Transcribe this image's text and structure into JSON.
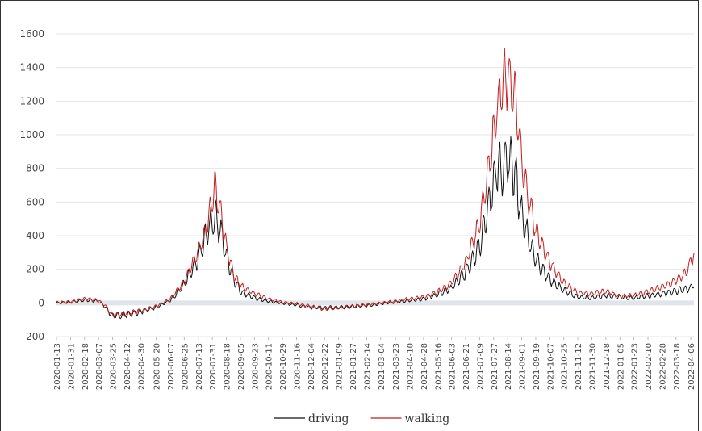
{
  "chart_data": {
    "type": "line",
    "title": "",
    "xlabel": "",
    "ylabel": "",
    "ylim": [
      -200,
      1600
    ],
    "yticks": [
      -200,
      0,
      200,
      400,
      600,
      800,
      1000,
      1200,
      1400,
      1600
    ],
    "x_start": "2020-01-13",
    "x_end": "2022-04-10",
    "xticks": [
      "2020-01-13",
      "2020-01-31",
      "2020-02-18",
      "2020-03-07",
      "2020-03-25",
      "2020-04-12",
      "2020-04-30",
      "2020-05-20",
      "2020-06-07",
      "2020-06-25",
      "2020-07-13",
      "2020-07-31",
      "2020-08-18",
      "2020-09-05",
      "2020-09-23",
      "2020-10-11",
      "2020-10-29",
      "2020-11-16",
      "2020-12-04",
      "2020-12-22",
      "2021-01-09",
      "2021-01-27",
      "2021-02-14",
      "2021-03-04",
      "2021-03-23",
      "2021-04-10",
      "2021-04-28",
      "2021-05-16",
      "2021-06-03",
      "2021-06-21",
      "2021-07-09",
      "2021-07-27",
      "2021-08-14",
      "2021-09-01",
      "2021-09-19",
      "2021-10-07",
      "2021-10-25",
      "2021-11-12",
      "2021-11-30",
      "2021-12-18",
      "2022-01-05",
      "2022-01-23",
      "2022-02-10",
      "2022-02-28",
      "2022-03-18",
      "2022-04-06"
    ],
    "grid": true,
    "legend_position": "bottom",
    "series": [
      {
        "name": "driving",
        "color": "#111111",
        "points": [
          [
            "2020-01-13",
            0
          ],
          [
            "2020-02-01",
            5
          ],
          [
            "2020-02-20",
            18
          ],
          [
            "2020-03-07",
            10
          ],
          [
            "2020-03-15",
            -20
          ],
          [
            "2020-03-25",
            -78
          ],
          [
            "2020-04-12",
            -68
          ],
          [
            "2020-04-30",
            -52
          ],
          [
            "2020-05-20",
            -25
          ],
          [
            "2020-06-07",
            15
          ],
          [
            "2020-06-25",
            110
          ],
          [
            "2020-07-13",
            260
          ],
          [
            "2020-07-25",
            430
          ],
          [
            "2020-08-03",
            520
          ],
          [
            "2020-08-10",
            440
          ],
          [
            "2020-08-18",
            280
          ],
          [
            "2020-08-28",
            140
          ],
          [
            "2020-09-05",
            70
          ],
          [
            "2020-09-23",
            30
          ],
          [
            "2020-10-11",
            10
          ],
          [
            "2020-10-29",
            -2
          ],
          [
            "2020-11-16",
            -12
          ],
          [
            "2020-12-04",
            -25
          ],
          [
            "2020-12-22",
            -30
          ],
          [
            "2021-01-09",
            -25
          ],
          [
            "2021-01-27",
            -22
          ],
          [
            "2021-02-14",
            -15
          ],
          [
            "2021-03-04",
            -5
          ],
          [
            "2021-03-23",
            5
          ],
          [
            "2021-04-10",
            15
          ],
          [
            "2021-04-28",
            25
          ],
          [
            "2021-05-16",
            50
          ],
          [
            "2021-06-03",
            90
          ],
          [
            "2021-06-21",
            180
          ],
          [
            "2021-07-09",
            350
          ],
          [
            "2021-07-22",
            600
          ],
          [
            "2021-07-31",
            820
          ],
          [
            "2021-08-06",
            760
          ],
          [
            "2021-08-14",
            850
          ],
          [
            "2021-08-22",
            800
          ],
          [
            "2021-08-28",
            640
          ],
          [
            "2021-09-01",
            520
          ],
          [
            "2021-09-10",
            380
          ],
          [
            "2021-09-19",
            260
          ],
          [
            "2021-10-07",
            140
          ],
          [
            "2021-10-25",
            75
          ],
          [
            "2021-11-12",
            35
          ],
          [
            "2021-11-30",
            30
          ],
          [
            "2021-12-18",
            45
          ],
          [
            "2022-01-05",
            35
          ],
          [
            "2022-01-23",
            30
          ],
          [
            "2022-02-10",
            42
          ],
          [
            "2022-02-28",
            55
          ],
          [
            "2022-03-18",
            70
          ],
          [
            "2022-04-06",
            90
          ],
          [
            "2022-04-10",
            115
          ]
        ]
      },
      {
        "name": "walking",
        "color": "#c41e1e",
        "points": [
          [
            "2020-01-13",
            2
          ],
          [
            "2020-02-01",
            8
          ],
          [
            "2020-02-20",
            25
          ],
          [
            "2020-03-07",
            15
          ],
          [
            "2020-03-15",
            -15
          ],
          [
            "2020-03-25",
            -75
          ],
          [
            "2020-04-12",
            -62
          ],
          [
            "2020-04-30",
            -48
          ],
          [
            "2020-05-20",
            -20
          ],
          [
            "2020-06-07",
            25
          ],
          [
            "2020-06-25",
            130
          ],
          [
            "2020-07-13",
            300
          ],
          [
            "2020-07-25",
            480
          ],
          [
            "2020-08-03",
            690
          ],
          [
            "2020-08-10",
            560
          ],
          [
            "2020-08-18",
            330
          ],
          [
            "2020-08-28",
            160
          ],
          [
            "2020-09-05",
            105
          ],
          [
            "2020-09-23",
            55
          ],
          [
            "2020-10-11",
            25
          ],
          [
            "2020-10-29",
            5
          ],
          [
            "2020-11-16",
            -5
          ],
          [
            "2020-12-04",
            -20
          ],
          [
            "2020-12-22",
            -35
          ],
          [
            "2021-01-09",
            -28
          ],
          [
            "2021-01-27",
            -20
          ],
          [
            "2021-02-14",
            -10
          ],
          [
            "2021-03-04",
            0
          ],
          [
            "2021-03-23",
            12
          ],
          [
            "2021-04-10",
            25
          ],
          [
            "2021-04-28",
            35
          ],
          [
            "2021-05-16",
            65
          ],
          [
            "2021-06-03",
            120
          ],
          [
            "2021-06-21",
            240
          ],
          [
            "2021-07-09",
            480
          ],
          [
            "2021-07-22",
            850
          ],
          [
            "2021-07-31",
            1150
          ],
          [
            "2021-08-06",
            1280
          ],
          [
            "2021-08-14",
            1350
          ],
          [
            "2021-08-22",
            1250
          ],
          [
            "2021-08-28",
            1050
          ],
          [
            "2021-09-01",
            820
          ],
          [
            "2021-09-10",
            620
          ],
          [
            "2021-09-19",
            430
          ],
          [
            "2021-10-07",
            240
          ],
          [
            "2021-10-25",
            120
          ],
          [
            "2021-11-12",
            60
          ],
          [
            "2021-11-30",
            55
          ],
          [
            "2021-12-18",
            70
          ],
          [
            "2022-01-05",
            40
          ],
          [
            "2022-01-23",
            45
          ],
          [
            "2022-02-10",
            70
          ],
          [
            "2022-02-28",
            95
          ],
          [
            "2022-03-18",
            130
          ],
          [
            "2022-04-01",
            190
          ],
          [
            "2022-04-10",
            300
          ]
        ]
      }
    ]
  }
}
